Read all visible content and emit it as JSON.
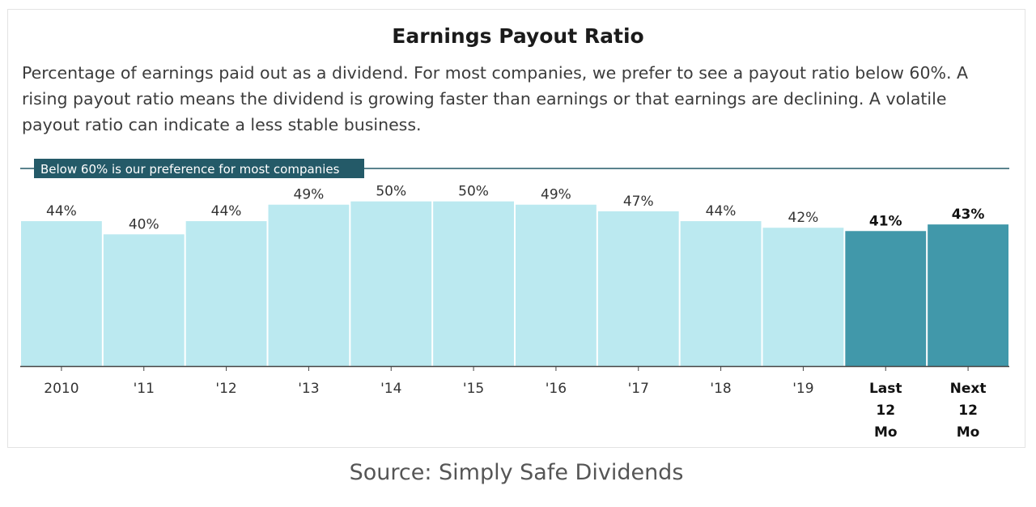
{
  "colors": {
    "bar_past": "#bbe9f0",
    "bar_current": "#4198aa",
    "reference_line": "#245a68",
    "label_bg": "#245a68",
    "label_text": "#ffffff",
    "axis": "#444444",
    "text": "#333333"
  },
  "chart_data": {
    "type": "bar",
    "title": "Earnings Payout Ratio",
    "subtitle": "Percentage of earnings paid out as a dividend. For most companies, we prefer to see a payout ratio below 60%. A rising payout ratio means the dividend is growing faster than earnings or that earnings are declining. A volatile payout ratio can indicate a less stable business.",
    "categories": [
      "2010",
      "'11",
      "'12",
      "'13",
      "'14",
      "'15",
      "'16",
      "'17",
      "'18",
      "'19",
      "Last 12 Mo",
      "Next 12 Mo"
    ],
    "category_label_lines": [
      [
        "2010"
      ],
      [
        "'11"
      ],
      [
        "'12"
      ],
      [
        "'13"
      ],
      [
        "'14"
      ],
      [
        "'15"
      ],
      [
        "'16"
      ],
      [
        "'17"
      ],
      [
        "'18"
      ],
      [
        "'19"
      ],
      [
        "Last",
        "12",
        "Mo"
      ],
      [
        "Next",
        "12",
        "Mo"
      ]
    ],
    "values": [
      44,
      40,
      44,
      49,
      50,
      50,
      49,
      47,
      44,
      42,
      41,
      43
    ],
    "value_labels": [
      "44%",
      "40%",
      "44%",
      "49%",
      "50%",
      "50%",
      "49%",
      "47%",
      "44%",
      "42%",
      "41%",
      "43%"
    ],
    "highlighted": [
      false,
      false,
      false,
      false,
      false,
      false,
      false,
      false,
      false,
      false,
      true,
      true
    ],
    "reference_line": {
      "value": 60,
      "label": "Below 60% is our preference for most companies"
    },
    "ylim": [
      0,
      60
    ],
    "unit": "%",
    "grid": false,
    "legend": "none"
  },
  "source": "Source: Simply Safe Dividends"
}
